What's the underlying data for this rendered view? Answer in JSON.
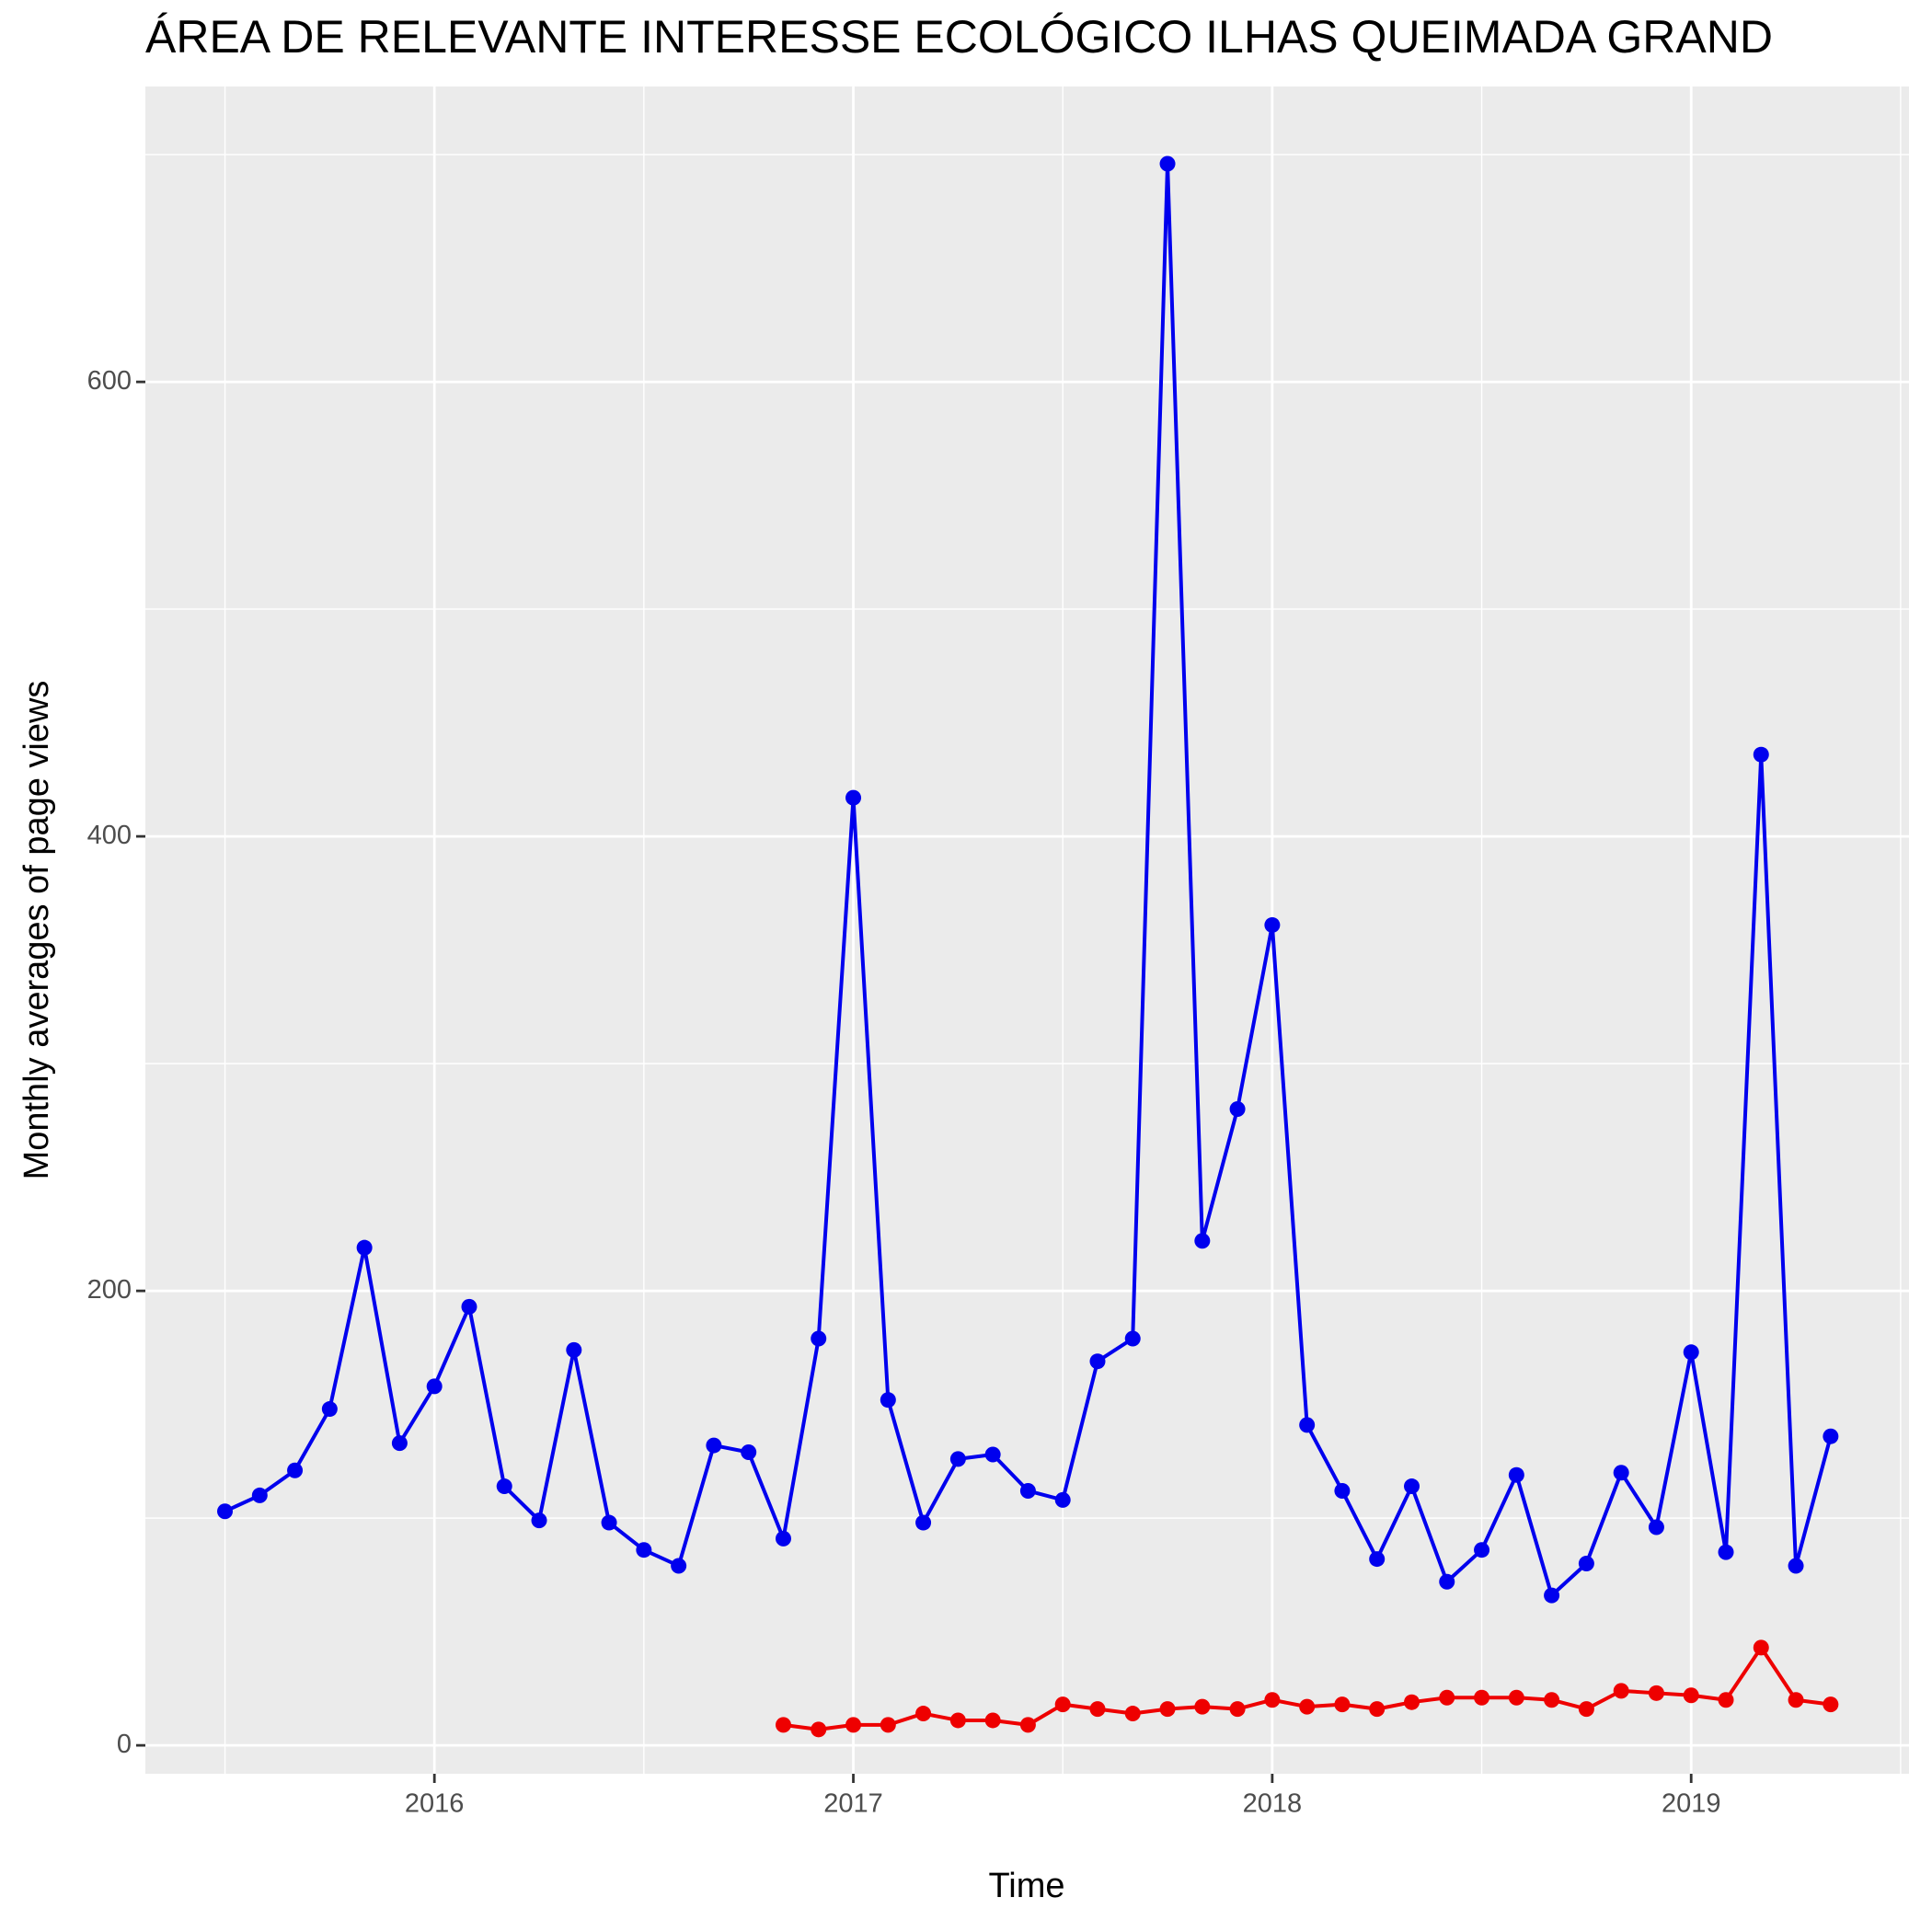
{
  "chart_data": {
    "type": "line",
    "title": "ÁREA DE RELEVANTE INTERESSE ECOLÓGICO ILHAS QUEIMADA GRAND",
    "x_label": "Time",
    "y_label": "Monthly averages of page views",
    "x": [
      2015.5,
      2015.583,
      2015.667,
      2015.75,
      2015.833,
      2015.917,
      2016,
      2016.083,
      2016.167,
      2016.25,
      2016.333,
      2016.417,
      2016.5,
      2016.583,
      2016.667,
      2016.75,
      2016.833,
      2016.917,
      2017,
      2017.083,
      2017.167,
      2017.25,
      2017.333,
      2017.417,
      2017.5,
      2017.583,
      2017.667,
      2017.75,
      2017.833,
      2017.917,
      2018,
      2018.083,
      2018.167,
      2018.25,
      2018.333,
      2018.417,
      2018.5,
      2018.583,
      2018.667,
      2018.75,
      2018.833,
      2018.917,
      2019,
      2019.083,
      2019.167,
      2019.25,
      2019.333
    ],
    "series": [
      {
        "color": "#0000ee",
        "values": [
          103,
          110,
          121,
          148,
          219,
          133,
          158,
          193,
          114,
          99,
          174,
          98,
          86,
          79,
          132,
          129,
          91,
          179,
          417,
          152,
          98,
          126,
          128,
          112,
          108,
          169,
          179,
          696,
          222,
          280,
          361,
          141,
          112,
          82,
          114,
          72,
          86,
          119,
          66,
          80,
          120,
          96,
          173,
          85,
          436,
          79,
          136
        ]
      },
      {
        "color": "#ee0000",
        "values": [
          null,
          null,
          null,
          null,
          null,
          null,
          null,
          null,
          null,
          null,
          null,
          null,
          null,
          null,
          null,
          null,
          9,
          7,
          9,
          9,
          14,
          11,
          11,
          9,
          18,
          16,
          14,
          16,
          17,
          16,
          20,
          17,
          18,
          16,
          19,
          21,
          21,
          21,
          20,
          16,
          24,
          23,
          22,
          20,
          43,
          20,
          18
        ]
      }
    ],
    "xlim": [
      2015.31,
      2019.52
    ],
    "ylim": [
      -12.5,
      730
    ],
    "xticks": [
      2016,
      2017,
      2018,
      2019
    ],
    "yticks": [
      0,
      200,
      400,
      600
    ],
    "xminorticks": [
      2015.5,
      2016.5,
      2017.5,
      2018.5,
      2019.5
    ],
    "yminorticks": [
      100,
      300,
      500,
      700
    ],
    "grid": true
  }
}
